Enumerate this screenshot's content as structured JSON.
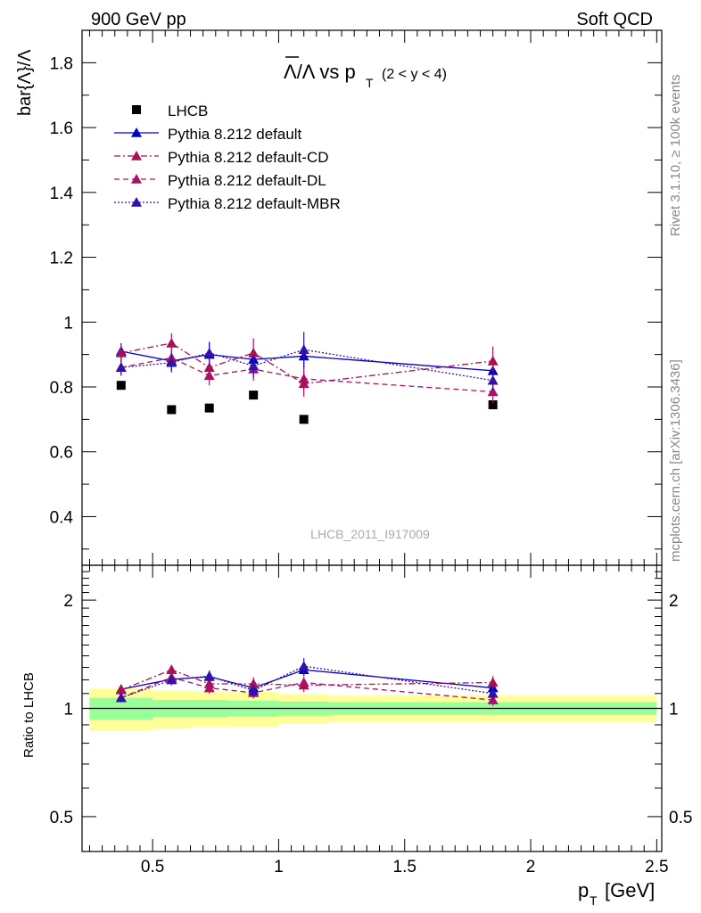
{
  "header": {
    "left_label": "900 GeV pp",
    "right_label": "Soft QCD"
  },
  "side_labels": {
    "rivet": "Rivet 3.1.10, ≥ 100k events",
    "mcplots": "mcplots.cern.ch [arXiv:1306.3436]"
  },
  "colors": {
    "data": "#000000",
    "default": "#0000cc",
    "cd": "#aa1155",
    "dl": "#aa1166",
    "mbr": "#3311aa",
    "band_outer": "#ffff99",
    "band_inner": "#99ff99"
  },
  "chart_data": [
    {
      "type": "scatter",
      "panel": "main",
      "title_main": "Λ/Λ vs p",
      "title_sub": "T",
      "title_range": "(2 < y < 4)",
      "ylabel": "bar{Λ}/Λ",
      "watermark": "LHCB_2011_I917009",
      "ylim": [
        0.25,
        1.9
      ],
      "xlim": [
        0.22,
        2.52
      ],
      "yticks": [
        0.4,
        0.6,
        0.8,
        1.0,
        1.2,
        1.4,
        1.6,
        1.8
      ],
      "ytick_labels": [
        "0.4",
        "0.6",
        "0.8",
        "1",
        "1.2",
        "1.4",
        "1.6",
        "1.8"
      ],
      "x": [
        0.375,
        0.575,
        0.725,
        0.9,
        1.1,
        1.85
      ],
      "series": [
        {
          "name": "LHCB",
          "key": "data",
          "style": "square",
          "values": [
            0.805,
            0.73,
            0.735,
            0.775,
            0.7,
            0.745
          ]
        },
        {
          "name": "Pythia 8.212 default",
          "key": "default",
          "style": "solid",
          "values": [
            0.91,
            0.88,
            0.9,
            0.885,
            0.895,
            0.85
          ],
          "err": [
            0.025,
            0.03,
            0.035,
            0.03,
            0.04,
            0.03
          ]
        },
        {
          "name": "Pythia 8.212 default-CD",
          "key": "cd",
          "style": "dashdot",
          "values": [
            0.905,
            0.935,
            0.86,
            0.905,
            0.81,
            0.88
          ],
          "err": [
            0.025,
            0.03,
            0.03,
            0.045,
            0.04,
            0.045
          ]
        },
        {
          "name": "Pythia 8.212 default-DL",
          "key": "dl",
          "style": "dashed",
          "values": [
            0.86,
            0.89,
            0.835,
            0.855,
            0.825,
            0.785
          ],
          "err": [
            0.025,
            0.03,
            0.03,
            0.035,
            0.035,
            0.035
          ]
        },
        {
          "name": "Pythia 8.212 default-MBR",
          "key": "mbr",
          "style": "dotted",
          "values": [
            0.86,
            0.875,
            0.905,
            0.865,
            0.915,
            0.82
          ],
          "err": [
            0.025,
            0.03,
            0.035,
            0.035,
            0.055,
            0.03
          ]
        }
      ]
    },
    {
      "type": "scatter",
      "panel": "ratio",
      "ylabel": "Ratio to LHCB",
      "xlabel": "p",
      "xlabel_sub": "T",
      "xlabel_unit": "[GeV]",
      "yscale": "log",
      "ylim": [
        0.4,
        2.5
      ],
      "xlim": [
        0.22,
        2.52
      ],
      "xticks": [
        0.5,
        1.0,
        1.5,
        2.0,
        2.5
      ],
      "xtick_labels": [
        "0.5",
        "1",
        "1.5",
        "2",
        "2.5"
      ],
      "yticks": [
        0.5,
        1.0,
        2.0
      ],
      "ytick_labels": [
        "0.5",
        "1",
        "2"
      ],
      "bins": [
        [
          0.25,
          0.5
        ],
        [
          0.5,
          0.65
        ],
        [
          0.65,
          0.8
        ],
        [
          0.8,
          1.0
        ],
        [
          1.0,
          1.2
        ],
        [
          1.2,
          2.5
        ]
      ],
      "band_inner": [
        0.07,
        0.055,
        0.055,
        0.05,
        0.045,
        0.04
      ],
      "band_outer": [
        0.135,
        0.12,
        0.115,
        0.11,
        0.095,
        0.085
      ],
      "x": [
        0.375,
        0.575,
        0.725,
        0.9,
        1.1,
        1.85
      ],
      "series": [
        {
          "name": "Pythia 8.212 default",
          "key": "default",
          "style": "solid",
          "values": [
            1.13,
            1.205,
            1.225,
            1.14,
            1.28,
            1.14
          ],
          "err": [
            0.03,
            0.04,
            0.04,
            0.035,
            0.05,
            0.04
          ]
        },
        {
          "name": "Pythia 8.212 default-CD",
          "key": "cd",
          "style": "dashdot",
          "values": [
            1.125,
            1.28,
            1.17,
            1.17,
            1.16,
            1.18
          ],
          "err": [
            0.03,
            0.04,
            0.04,
            0.05,
            0.05,
            0.05
          ]
        },
        {
          "name": "Pythia 8.212 default-DL",
          "key": "dl",
          "style": "dashed",
          "values": [
            1.07,
            1.22,
            1.14,
            1.105,
            1.18,
            1.055
          ],
          "err": [
            0.03,
            0.04,
            0.04,
            0.04,
            0.045,
            0.04
          ]
        },
        {
          "name": "Pythia 8.212 default-MBR",
          "key": "mbr",
          "style": "dotted",
          "values": [
            1.07,
            1.2,
            1.23,
            1.12,
            1.31,
            1.1
          ],
          "err": [
            0.03,
            0.04,
            0.045,
            0.045,
            0.07,
            0.04
          ]
        }
      ]
    }
  ]
}
